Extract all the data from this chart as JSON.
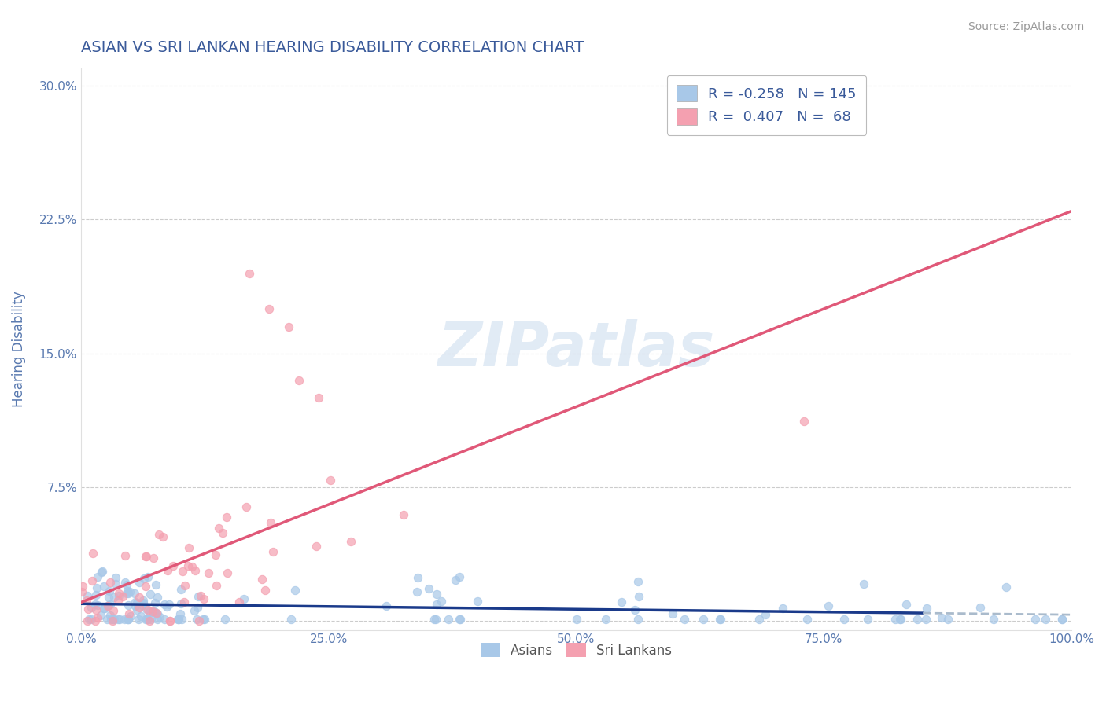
{
  "title": "ASIAN VS SRI LANKAN HEARING DISABILITY CORRELATION CHART",
  "source": "Source: ZipAtlas.com",
  "xlabel": "",
  "ylabel": "Hearing Disability",
  "xlim": [
    0.0,
    1.0
  ],
  "ylim": [
    -0.005,
    0.31
  ],
  "yticks": [
    0.0,
    0.075,
    0.15,
    0.225,
    0.3
  ],
  "ytick_labels": [
    "",
    "7.5%",
    "15.0%",
    "22.5%",
    "30.0%"
  ],
  "xticks": [
    0.0,
    0.25,
    0.5,
    0.75,
    1.0
  ],
  "xtick_labels": [
    "0.0%",
    "25.0%",
    "50.0%",
    "75.0%",
    "100.0%"
  ],
  "asian_color": "#a8c8e8",
  "srilanka_color": "#f4a0b0",
  "asian_line_color": "#1a3a8a",
  "asian_line_dash_color": "#aabbcc",
  "srilanka_line_color": "#e05878",
  "R_asian": -0.258,
  "N_asian": 145,
  "R_srilanka": 0.407,
  "N_srilanka": 68,
  "watermark": "ZIPatlas",
  "title_color": "#3a5a9a",
  "axis_label_color": "#5a7ab0",
  "tick_color": "#5a7ab0",
  "source_color": "#999999",
  "grid_color": "#cccccc",
  "background_color": "#ffffff",
  "legend_label_asian": "Asians",
  "legend_label_srilanka": "Sri Lankans",
  "seed": 42
}
